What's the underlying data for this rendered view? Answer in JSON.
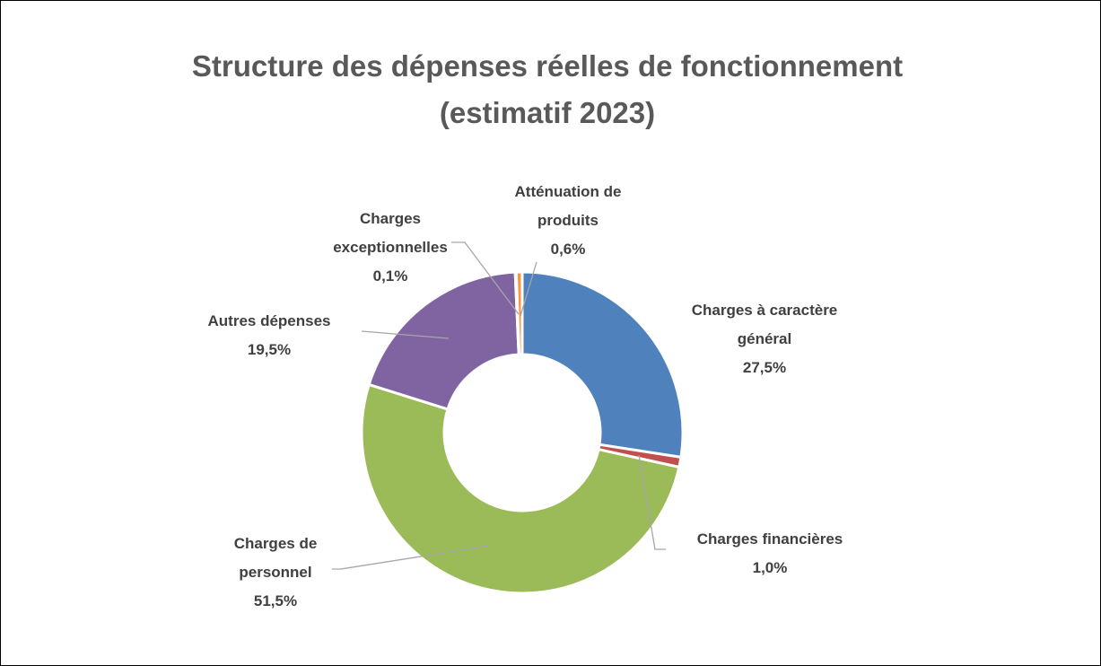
{
  "chart_data": {
    "type": "donut",
    "title": "Structure des dépenses réelles de fonctionnement (estimatif 2023)",
    "categories": [
      "Charges à caractère général",
      "Charges financières",
      "Charges de personnel",
      "Autres dépenses",
      "Charges exceptionnelles",
      "Atténuation de produits"
    ],
    "values": [
      27.5,
      1.0,
      51.5,
      19.5,
      0.1,
      0.6
    ],
    "value_labels": [
      "27,5%",
      "1,0%",
      "51,5%",
      "19,5%",
      "0,1%",
      "0,6%"
    ],
    "colors": [
      "#4f81bd",
      "#c0504d",
      "#9bbb59",
      "#8064a2",
      "#4bacc6",
      "#f79646"
    ]
  }
}
